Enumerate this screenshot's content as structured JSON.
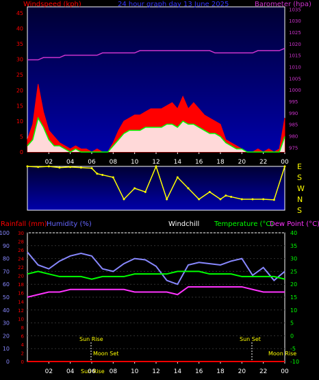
{
  "header": {
    "title": "24 hour graph day  13 June 2025",
    "windspeed_label": "Windspeed (kph)",
    "barometer_label": "Barometer (hpa)"
  },
  "lower_header": {
    "rainfall_label": "Rainfall (mm)",
    "humidity_label": "Humidity (%)",
    "windchill_label": "Windchill",
    "temperature_label": "Temperature (°C)",
    "dewpoint_label": "Dew Point (°C)"
  },
  "direction_labels": [
    "E",
    "S",
    "W",
    "N",
    "S"
  ],
  "markers": {
    "sunrise": "Sun Rise",
    "moonset": "Moon Set",
    "sunset": "Sun Set",
    "moonrise": "Moon Rise",
    "sunrise_bottom": "Sun Rise"
  },
  "colors": {
    "windspeed": "#ff0000",
    "average": "#00ff00",
    "gust_fill": "#ffffff",
    "barometer": "#cc33cc",
    "direction": "#ffff00",
    "humidity": "#8888ff",
    "temperature": "#00ff00",
    "dewpoint": "#ff33ff",
    "rainfall": "#ff0000",
    "plot_top": "#000044",
    "plot_bottom": "#0000aa"
  },
  "chart_data": [
    {
      "type": "area",
      "title": "24 hour graph day  13 June 2025",
      "ylabel": "Windspeed (kph)",
      "y2label": "Barometer (hpa)",
      "x_ticks": [
        "02",
        "04",
        "06",
        "08",
        "10",
        "12",
        "14",
        "16",
        "18",
        "20",
        "22",
        "00"
      ],
      "ylim": [
        0,
        47
      ],
      "y_ticks": [
        0,
        5,
        10,
        15,
        20,
        25,
        30,
        35,
        40,
        45
      ],
      "y2lim": [
        973,
        1036
      ],
      "y2_ticks": [
        975,
        980,
        985,
        990,
        995,
        1000,
        1005,
        1010,
        1015,
        1020,
        1025,
        1030,
        1035
      ],
      "x": [
        0,
        0.5,
        1,
        1.5,
        2,
        2.5,
        3,
        3.5,
        4,
        4.5,
        5,
        5.5,
        6,
        6.5,
        7,
        7.5,
        8,
        8.5,
        9,
        9.5,
        10,
        10.5,
        11,
        11.5,
        12,
        12.5,
        13,
        13.5,
        14,
        14.5,
        15,
        15.5,
        16,
        16.5,
        17,
        17.5,
        18,
        18.5,
        19,
        19.5,
        20,
        20.5,
        21,
        21.5,
        22,
        22.5,
        23,
        23.5,
        24
      ],
      "series": [
        {
          "values": [
            4,
            9,
            22,
            13,
            7,
            5,
            3,
            2,
            1,
            2,
            1,
            1,
            0,
            1,
            0,
            0,
            3,
            7,
            10,
            11,
            12,
            12,
            13,
            14,
            14,
            14,
            15,
            16,
            14,
            18,
            14,
            16,
            14,
            12,
            11,
            10,
            9,
            4,
            3,
            2,
            1,
            0,
            0,
            1,
            0,
            1,
            0,
            1,
            11
          ]
        },
        {
          "values": [
            2,
            4,
            11,
            8,
            4,
            2,
            2,
            1,
            0,
            1,
            0,
            0,
            0,
            0,
            0,
            0,
            2,
            4,
            6,
            7,
            7,
            7,
            8,
            8,
            8,
            8,
            9,
            9,
            8,
            10,
            9,
            9,
            8,
            7,
            6,
            6,
            5,
            3,
            2,
            1,
            1,
            0,
            0,
            0,
            0,
            0,
            0,
            0,
            5
          ]
        },
        {
          "values": [
            1013,
            1013,
            1013,
            1014,
            1014,
            1014,
            1014,
            1015,
            1015,
            1015,
            1015,
            1015,
            1015,
            1015,
            1016,
            1016,
            1016,
            1016,
            1016,
            1016,
            1016,
            1017,
            1017,
            1017,
            1017,
            1017,
            1017,
            1017,
            1017,
            1017,
            1017,
            1017,
            1017,
            1017,
            1017,
            1016,
            1016,
            1016,
            1016,
            1016,
            1016,
            1016,
            1016,
            1017,
            1017,
            1017,
            1017,
            1017,
            1018
          ]
        }
      ]
    },
    {
      "type": "scatter",
      "ylabels_right": [
        "E",
        "S",
        "W",
        "N",
        "S"
      ],
      "x": [
        0,
        1,
        2,
        3,
        4,
        5,
        6,
        6.5,
        7,
        8,
        9,
        10,
        11,
        12,
        13,
        14,
        15,
        16,
        17,
        18,
        18.5,
        19,
        20,
        21,
        22,
        23,
        24
      ],
      "series": [
        {
          "values": [
            90,
            95,
            90,
            100,
            95,
            100,
            105,
            150,
            160,
            180,
            360,
            270,
            300,
            90,
            360,
            180,
            270,
            360,
            300,
            360,
            330,
            340,
            0,
            0,
            0,
            5,
            90
          ]
        }
      ]
    },
    {
      "type": "line",
      "ylabel": "Rainfall (mm)",
      "y2label": "Humidity (%)",
      "y3label": "Temperature (°C)",
      "y4label": "Dew Point (°C)",
      "x_ticks": [
        "02",
        "04",
        "06",
        "08",
        "10",
        "12",
        "14",
        "16",
        "18",
        "20",
        "22",
        "00"
      ],
      "rainfall_ylim": [
        0,
        30
      ],
      "rainfall_ticks": [
        0,
        2,
        4,
        6,
        8,
        10,
        12,
        14,
        16,
        18,
        20,
        22,
        24,
        26,
        28,
        30
      ],
      "humidity_ylim": [
        0,
        100
      ],
      "humidity_ticks": [
        0,
        10,
        20,
        30,
        40,
        50,
        60,
        70,
        80,
        90,
        100
      ],
      "temp_ylim": [
        -10,
        40
      ],
      "temp_ticks": [
        -10,
        -5,
        0,
        5,
        10,
        15,
        20,
        25,
        30,
        35,
        40
      ],
      "x": [
        0,
        1,
        2,
        3,
        4,
        5,
        6,
        7,
        8,
        9,
        10,
        11,
        12,
        13,
        14,
        15,
        16,
        17,
        18,
        19,
        20,
        21,
        22,
        23,
        24
      ],
      "series": [
        {
          "name": "Humidity (%)",
          "values": [
            85,
            75,
            72,
            78,
            82,
            84,
            82,
            72,
            70,
            76,
            80,
            79,
            74,
            63,
            60,
            75,
            77,
            76,
            75,
            78,
            80,
            67,
            73,
            63,
            70
          ]
        },
        {
          "name": "Temperature (°C)",
          "values": [
            24,
            25,
            24,
            23,
            23,
            23,
            22,
            23,
            23,
            23,
            24,
            24,
            24,
            24,
            25,
            25,
            25,
            24,
            24,
            24,
            23,
            23,
            23,
            23,
            22
          ]
        },
        {
          "name": "Dew Point (°C)",
          "values": [
            15,
            16,
            17,
            17,
            18,
            18,
            18,
            18,
            18,
            18,
            17,
            17,
            17,
            17,
            16,
            19,
            19,
            19,
            19,
            19,
            19,
            18,
            17,
            17,
            17
          ]
        },
        {
          "name": "Rainfall (mm)",
          "values": [
            0,
            0,
            0,
            0,
            0,
            0,
            0,
            0,
            0,
            0,
            0,
            0,
            0,
            0,
            0,
            0,
            0,
            0,
            0,
            0,
            0,
            0,
            0,
            0,
            0
          ]
        }
      ]
    }
  ]
}
